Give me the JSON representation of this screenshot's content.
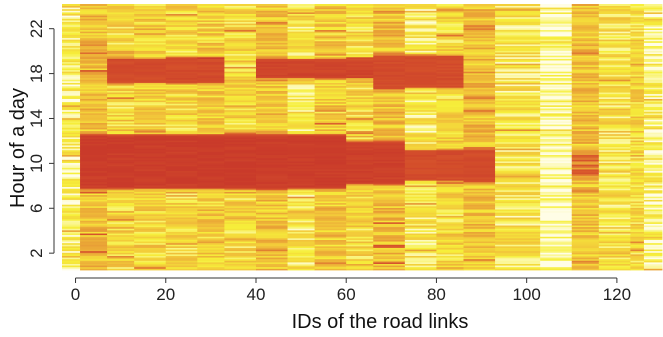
{
  "chart_data": {
    "type": "heatmap",
    "title": "",
    "xlabel": "IDs of the road links",
    "ylabel": "Hour of a day",
    "xlim": [
      -3,
      130
    ],
    "ylim": [
      0.5,
      24.2
    ],
    "x_ticks": [
      {
        "value": 0,
        "label": "0"
      },
      {
        "value": 20,
        "label": "20"
      },
      {
        "value": 40,
        "label": "40"
      },
      {
        "value": 60,
        "label": "60"
      },
      {
        "value": 80,
        "label": "80"
      },
      {
        "value": 100,
        "label": "100"
      },
      {
        "value": 120,
        "label": "120"
      }
    ],
    "y_ticks": [
      {
        "value": 2,
        "label": "2"
      },
      {
        "value": 6,
        "label": "6"
      },
      {
        "value": 10,
        "label": "10"
      },
      {
        "value": 14,
        "label": "14"
      },
      {
        "value": 18,
        "label": "18"
      },
      {
        "value": 22,
        "label": "22"
      }
    ],
    "grid": false,
    "legend": "none",
    "colormap": [
      "#fffde6",
      "#f6ef3a",
      "#f2c63a",
      "#e79a35",
      "#d9582c",
      "#c93a2a"
    ],
    "x_groups": [
      {
        "x0": -3,
        "x1": 1,
        "base": 0.15
      },
      {
        "x0": 1,
        "x1": 7,
        "base": 0.42
      },
      {
        "x0": 7,
        "x1": 13,
        "base": 0.3
      },
      {
        "x0": 13,
        "x1": 20,
        "base": 0.32
      },
      {
        "x0": 20,
        "x1": 27,
        "base": 0.3
      },
      {
        "x0": 27,
        "x1": 33,
        "base": 0.35
      },
      {
        "x0": 33,
        "x1": 40,
        "base": 0.3
      },
      {
        "x0": 40,
        "x1": 47,
        "base": 0.4
      },
      {
        "x0": 47,
        "x1": 53,
        "base": 0.22
      },
      {
        "x0": 53,
        "x1": 60,
        "base": 0.35
      },
      {
        "x0": 60,
        "x1": 66,
        "base": 0.3
      },
      {
        "x0": 66,
        "x1": 73,
        "base": 0.42
      },
      {
        "x0": 73,
        "x1": 80,
        "base": 0.2
      },
      {
        "x0": 80,
        "x1": 86,
        "base": 0.3
      },
      {
        "x0": 86,
        "x1": 93,
        "base": 0.42
      },
      {
        "x0": 93,
        "x1": 103,
        "base": 0.22
      },
      {
        "x0": 103,
        "x1": 110,
        "base": 0.05
      },
      {
        "x0": 110,
        "x1": 116,
        "base": 0.4
      },
      {
        "x0": 116,
        "x1": 123,
        "base": 0.25
      },
      {
        "x0": 123,
        "x1": 126,
        "base": 0.3
      },
      {
        "x0": 126,
        "x1": 130,
        "base": 0.12
      }
    ],
    "hot_bands": [
      {
        "x0": 1,
        "x1": 60,
        "y0": 7.9,
        "y1": 12.4,
        "intensity": 1.0
      },
      {
        "x0": 60,
        "x1": 73,
        "y0": 8.3,
        "y1": 11.8,
        "intensity": 0.9
      },
      {
        "x0": 73,
        "x1": 93,
        "y0": 8.6,
        "y1": 11.2,
        "intensity": 0.62
      },
      {
        "x0": 110,
        "x1": 116,
        "y0": 8.8,
        "y1": 11.0,
        "intensity": 0.45
      },
      {
        "x0": 7,
        "x1": 33,
        "y0": 17.3,
        "y1": 19.3,
        "intensity": 0.65
      },
      {
        "x0": 40,
        "x1": 66,
        "y0": 17.7,
        "y1": 19.2,
        "intensity": 0.8
      },
      {
        "x0": 66,
        "x1": 86,
        "y0": 16.8,
        "y1": 19.6,
        "intensity": 0.62
      }
    ]
  }
}
